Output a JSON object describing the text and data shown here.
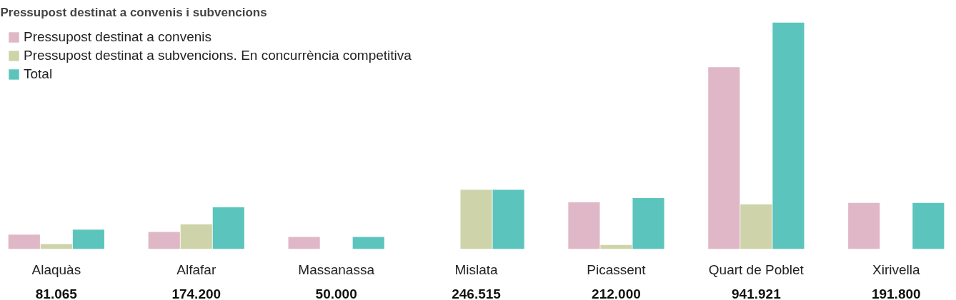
{
  "chart_data": {
    "type": "bar",
    "title": "Pressupost destinat a convenis i subvencions",
    "categories": [
      "Alaquàs",
      "Alfafar",
      "Massanassa",
      "Mislata",
      "Picassent",
      "Quart de Poblet",
      "Xirivella"
    ],
    "series": [
      {
        "name": "Pressupost destinat a convenis",
        "color": "#e0b7c6",
        "values": [
          60000,
          71000,
          50000,
          null,
          195000,
          756000,
          191800
        ]
      },
      {
        "name": "Pressupost destinat a subvencions. En concurrència competitiva",
        "color": "#cfd3a9",
        "values": [
          21065,
          103200,
          null,
          246515,
          17000,
          185921,
          null
        ]
      },
      {
        "name": "Total",
        "color": "#5bc5bd",
        "values": [
          81065,
          174200,
          50000,
          246515,
          212000,
          941921,
          191800
        ],
        "value_labels": [
          "81.065",
          "174.200",
          "50.000",
          "246.515",
          "212.000",
          "941.921",
          "191.800"
        ]
      }
    ],
    "legend": "top left",
    "grid": false
  }
}
